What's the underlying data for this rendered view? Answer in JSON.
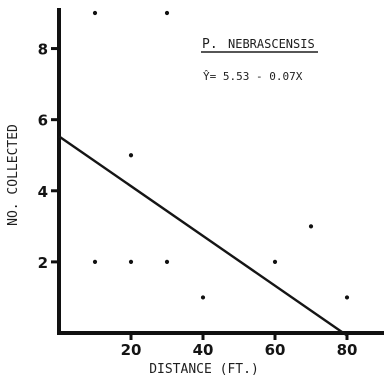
{
  "chart_data": {
    "type": "scatter",
    "title_initial": "P.",
    "title_species": "NEBRASCENSIS",
    "equation": "Ŷ= 5.53 - 0.07X",
    "xlabel": "DISTANCE (FT.)",
    "ylabel": "NO. COLLECTED",
    "xlim": [
      0,
      90
    ],
    "ylim": [
      0,
      9
    ],
    "x_ticks": [
      {
        "value": 20,
        "label": "20"
      },
      {
        "value": 40,
        "label": "40"
      },
      {
        "value": 60,
        "label": "60"
      },
      {
        "value": 80,
        "label": "80"
      }
    ],
    "y_ticks": [
      {
        "value": 2,
        "label": "2"
      },
      {
        "value": 4,
        "label": "4"
      },
      {
        "value": 6,
        "label": "6"
      },
      {
        "value": 8,
        "label": "8"
      }
    ],
    "points": [
      {
        "x": 10,
        "y": 9
      },
      {
        "x": 10,
        "y": 2
      },
      {
        "x": 20,
        "y": 5
      },
      {
        "x": 20,
        "y": 2
      },
      {
        "x": 30,
        "y": 9
      },
      {
        "x": 30,
        "y": 2
      },
      {
        "x": 40,
        "y": 1
      },
      {
        "x": 60,
        "y": 2
      },
      {
        "x": 70,
        "y": 3
      },
      {
        "x": 80,
        "y": 1
      }
    ],
    "fit": {
      "intercept": 5.53,
      "slope": -0.07,
      "x_start": 0,
      "x_end": 80
    },
    "grid": false,
    "legend": "none"
  }
}
